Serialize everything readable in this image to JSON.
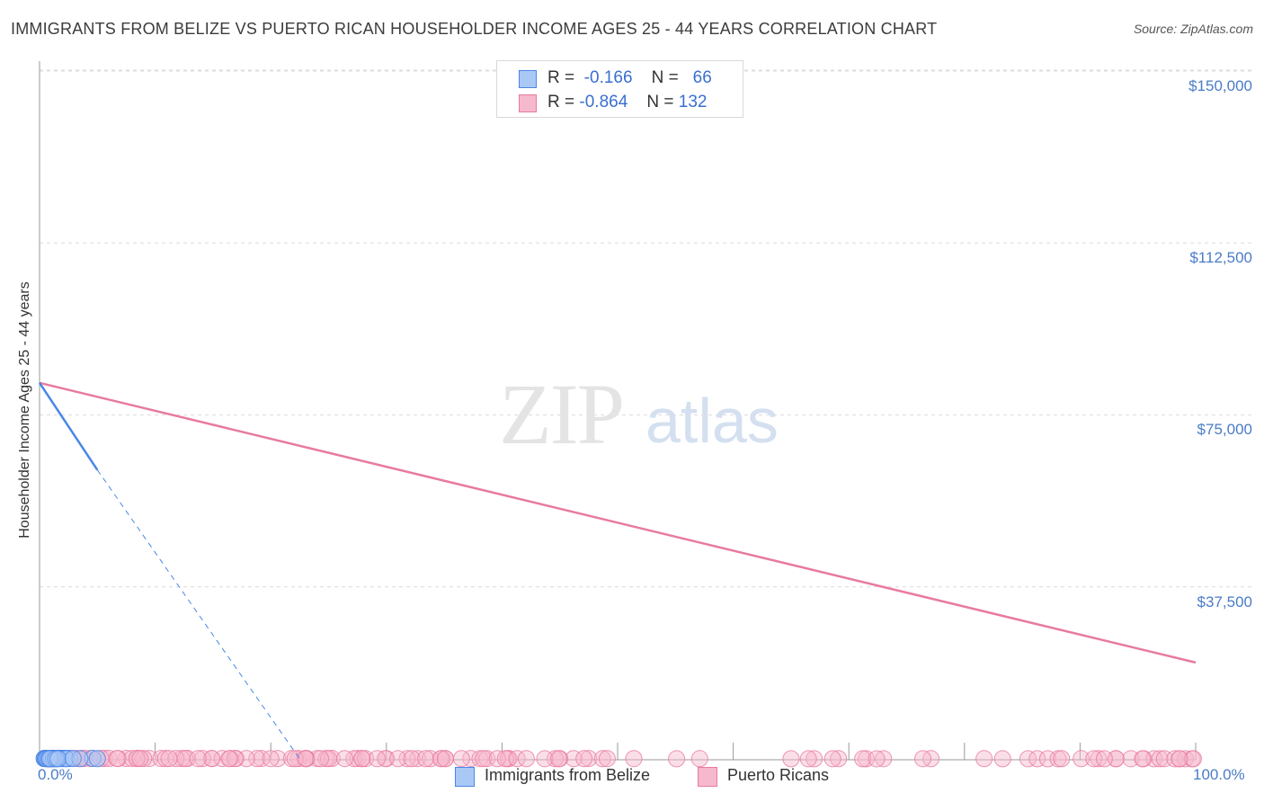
{
  "title": "IMMIGRANTS FROM BELIZE VS PUERTO RICAN HOUSEHOLDER INCOME AGES 25 - 44 YEARS CORRELATION CHART",
  "source": "Source: ZipAtlas.com",
  "watermark": {
    "zip": "ZIP",
    "atlas": "atlas"
  },
  "legend": {
    "r_label": "R =",
    "n_label": "N =",
    "series1": {
      "r": "-0.166",
      "n": "66"
    },
    "series2": {
      "r": "-0.864",
      "n": "132"
    }
  },
  "bottom_legend": {
    "series1": "Immigrants from Belize",
    "series2": "Puerto Ricans"
  },
  "colors": {
    "blue": "#4a86e8",
    "blue_fill": "#aac8f5",
    "pink": "#e87aa0",
    "pink_fill": "#f6b8cc",
    "tick_text": "#4a7cc7"
  },
  "chart_data": {
    "type": "scatter",
    "title": "IMMIGRANTS FROM BELIZE VS PUERTO RICAN HOUSEHOLDER INCOME AGES 25 - 44 YEARS CORRELATION CHART",
    "xlabel": "",
    "ylabel": "Householder Income Ages 25 - 44 years",
    "xlim": [
      0,
      100
    ],
    "ylim": [
      0,
      153000
    ],
    "x_tick_labels": [
      "0.0%",
      "100.0%"
    ],
    "y_ticks": [
      37500,
      75000,
      112500,
      150000
    ],
    "y_tick_labels": [
      "$37,500",
      "$75,000",
      "$112,500",
      "$150,000"
    ],
    "series": [
      {
        "name": "Immigrants from Belize",
        "r": -0.166,
        "n": 66,
        "trend": {
          "x": [
            0,
            5
          ],
          "y": [
            82000,
            63000
          ],
          "dashed_extension_to": [
            22.5,
            0
          ]
        },
        "points": [
          [
            1.2,
            133
          ],
          [
            1.7,
            134
          ],
          [
            1.5,
            107
          ],
          [
            1.4,
            101
          ],
          [
            1.6,
            99
          ],
          [
            4.6,
            101
          ],
          [
            0.7,
            96
          ],
          [
            0.5,
            94
          ],
          [
            1.0,
            94
          ],
          [
            0.6,
            92
          ],
          [
            0.8,
            91
          ],
          [
            0.5,
            90
          ],
          [
            0.7,
            89
          ],
          [
            0.9,
            88
          ],
          [
            1.8,
            88
          ],
          [
            0.4,
            87
          ],
          [
            0.6,
            86
          ],
          [
            1.1,
            86
          ],
          [
            2.3,
            86
          ],
          [
            0.5,
            85
          ],
          [
            0.8,
            85
          ],
          [
            1.3,
            85
          ],
          [
            2.0,
            84
          ],
          [
            0.6,
            83
          ],
          [
            0.9,
            82
          ],
          [
            1.5,
            82
          ],
          [
            0.7,
            81
          ],
          [
            1.1,
            80
          ],
          [
            0.4,
            78
          ],
          [
            0.9,
            77
          ],
          [
            1.4,
            77
          ],
          [
            0.6,
            73
          ],
          [
            0.8,
            72
          ],
          [
            1.3,
            71
          ],
          [
            0.5,
            70
          ],
          [
            1.6,
            70
          ],
          [
            0.8,
            69
          ],
          [
            1.0,
            69
          ],
          [
            1.5,
            69
          ],
          [
            2.0,
            69
          ],
          [
            0.7,
            68
          ],
          [
            1.4,
            67
          ],
          [
            2.1,
            67
          ],
          [
            0.9,
            66
          ],
          [
            2.6,
            64
          ],
          [
            0.6,
            62
          ],
          [
            1.8,
            60
          ],
          [
            2.3,
            59
          ],
          [
            1.0,
            58
          ],
          [
            1.5,
            57
          ],
          [
            0.8,
            56
          ],
          [
            1.1,
            54
          ],
          [
            2.3,
            54
          ],
          [
            0.9,
            52
          ],
          [
            5.0,
            51
          ],
          [
            0.7,
            50
          ],
          [
            1.2,
            50
          ],
          [
            0.6,
            47
          ],
          [
            1.0,
            46
          ],
          [
            0.8,
            43
          ],
          [
            1.2,
            42
          ],
          [
            0.9,
            40
          ],
          [
            1.4,
            37
          ],
          [
            1.6,
            34
          ],
          [
            3.5,
            51
          ],
          [
            2.9,
            68
          ]
        ]
      },
      {
        "name": "Puerto Ricans",
        "r": -0.864,
        "n": 132,
        "trend": {
          "x": [
            0,
            100
          ],
          "y": [
            82000,
            21000
          ]
        },
        "points": [
          [
            2.0,
            96
          ],
          [
            3.2,
            94
          ],
          [
            4.4,
            96
          ],
          [
            1.6,
            94
          ],
          [
            2.7,
            93
          ],
          [
            3.7,
            92
          ],
          [
            1.3,
            92
          ],
          [
            5.6,
            93
          ],
          [
            7.5,
            92
          ],
          [
            1.7,
            91
          ],
          [
            3.9,
            91
          ],
          [
            6.0,
            91
          ],
          [
            1.4,
            90
          ],
          [
            2.1,
            89
          ],
          [
            8.5,
            89
          ],
          [
            25.3,
            89
          ],
          [
            5.3,
            86
          ],
          [
            12.8,
            86
          ],
          [
            6.8,
            84
          ],
          [
            8.0,
            84
          ],
          [
            9.5,
            84
          ],
          [
            37.3,
            84
          ],
          [
            47.5,
            83
          ],
          [
            9.0,
            82
          ],
          [
            19.2,
            82
          ],
          [
            10.5,
            80
          ],
          [
            6.7,
            80
          ],
          [
            8.4,
            78
          ],
          [
            24.0,
            78
          ],
          [
            12.3,
            77
          ],
          [
            17.0,
            77
          ],
          [
            10.9,
            76
          ],
          [
            11.8,
            76
          ],
          [
            27.5,
            74
          ],
          [
            8.7,
            73
          ],
          [
            14.9,
            71
          ],
          [
            18.8,
            71
          ],
          [
            23.0,
            71
          ],
          [
            11.2,
            70
          ],
          [
            22.4,
            69
          ],
          [
            35.1,
            68
          ],
          [
            15.8,
            68
          ],
          [
            20.6,
            68
          ],
          [
            27.9,
            68
          ],
          [
            12.6,
            67
          ],
          [
            16.5,
            66
          ],
          [
            14.1,
            65
          ],
          [
            17.9,
            65
          ],
          [
            14.9,
            64
          ],
          [
            23.1,
            64
          ],
          [
            16.9,
            63
          ],
          [
            21.8,
            62
          ],
          [
            24.8,
            62
          ],
          [
            20.0,
            61
          ],
          [
            27.2,
            61
          ],
          [
            38.1,
            61
          ],
          [
            46.2,
            61
          ],
          [
            38.7,
            60
          ],
          [
            23.1,
            60
          ],
          [
            13.7,
            60
          ],
          [
            26.4,
            60
          ],
          [
            30.0,
            60
          ],
          [
            40.6,
            60
          ],
          [
            16.4,
            59
          ],
          [
            45.0,
            59
          ],
          [
            25.0,
            57
          ],
          [
            28.2,
            57
          ],
          [
            34.8,
            57
          ],
          [
            38.4,
            56
          ],
          [
            36.5,
            55
          ],
          [
            29.9,
            55
          ],
          [
            32.7,
            55
          ],
          [
            51.4,
            55
          ],
          [
            40.5,
            55
          ],
          [
            31.8,
            54
          ],
          [
            33.8,
            53
          ],
          [
            22.1,
            53
          ],
          [
            24.3,
            52
          ],
          [
            29.2,
            52
          ],
          [
            27.9,
            52
          ],
          [
            31.0,
            52
          ],
          [
            32.2,
            51
          ],
          [
            39.6,
            52
          ],
          [
            47.1,
            52
          ],
          [
            23.0,
            51
          ],
          [
            44.6,
            50
          ],
          [
            33.4,
            47
          ],
          [
            40.3,
            46
          ],
          [
            41.3,
            44
          ],
          [
            42.1,
            44
          ],
          [
            69.1,
            44
          ],
          [
            48.7,
            43
          ],
          [
            77.1,
            43
          ],
          [
            34.7,
            42
          ],
          [
            57.1,
            42
          ],
          [
            81.7,
            42
          ],
          [
            90.1,
            42
          ],
          [
            91.6,
            41
          ],
          [
            93.1,
            41
          ],
          [
            35.1,
            35
          ],
          [
            43.7,
            35
          ],
          [
            44.9,
            35
          ],
          [
            73.0,
            35
          ],
          [
            94.4,
            35
          ],
          [
            91.2,
            33
          ],
          [
            95.5,
            32
          ],
          [
            68.6,
            31
          ],
          [
            76.4,
            31
          ],
          [
            93.1,
            30
          ],
          [
            96.4,
            30
          ],
          [
            96.9,
            30
          ],
          [
            97.3,
            31
          ],
          [
            98.2,
            29
          ],
          [
            99.1,
            27
          ],
          [
            98.6,
            26
          ],
          [
            99.7,
            26
          ],
          [
            65.0,
            26
          ],
          [
            85.5,
            25
          ],
          [
            95.4,
            23
          ],
          [
            99.8,
            23
          ],
          [
            98.6,
            22
          ],
          [
            86.3,
            21
          ],
          [
            92.1,
            20
          ],
          [
            71.5,
            20
          ],
          [
            87.2,
            19
          ],
          [
            71.2,
            17
          ],
          [
            67.0,
            16
          ],
          [
            55.1,
            17
          ],
          [
            66.5,
            13
          ],
          [
            83.3,
            15
          ],
          [
            88.1,
            14
          ],
          [
            72.4,
            12
          ],
          [
            88.4,
            53
          ],
          [
            49.1,
            55
          ]
        ]
      }
    ]
  }
}
